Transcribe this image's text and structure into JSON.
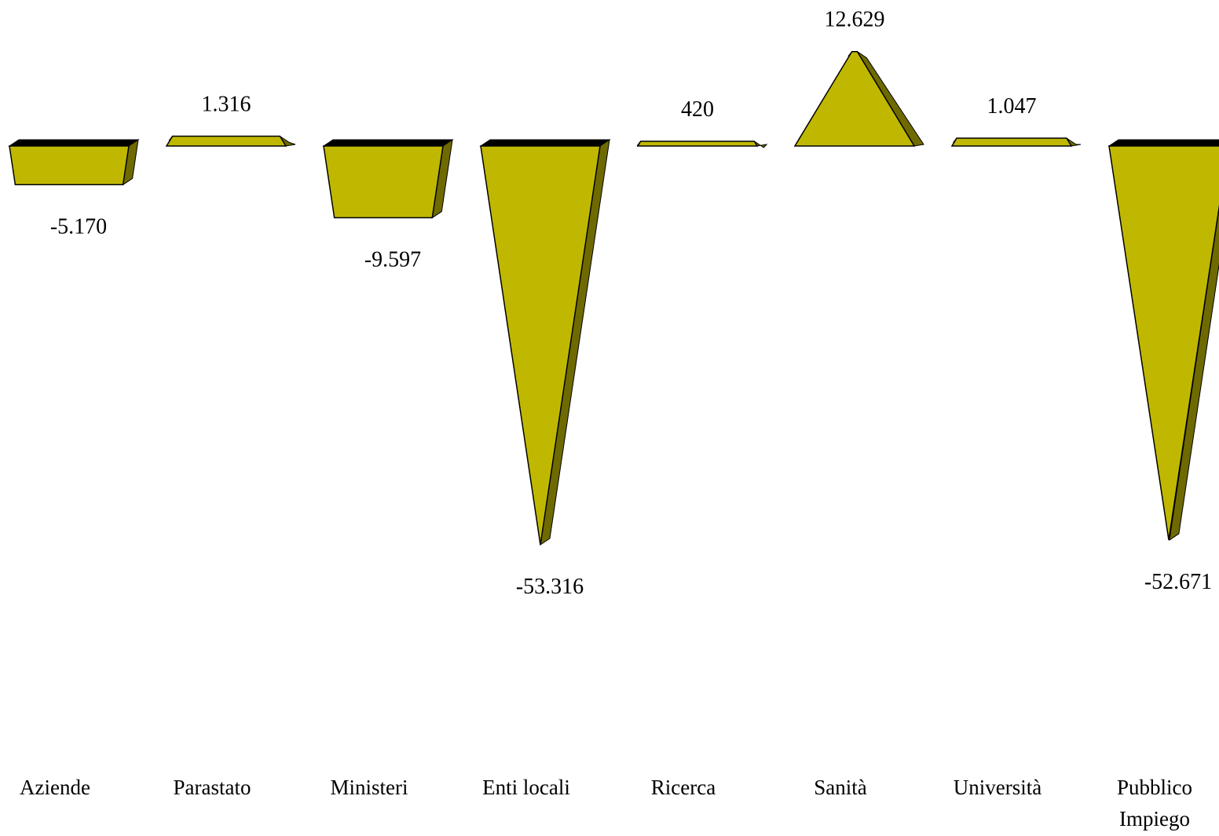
{
  "chart_data": {
    "type": "bar",
    "shape": "pyramid",
    "categories": [
      "Aziende",
      "Parastato",
      "Ministeri",
      "Enti locali",
      "Ricerca",
      "Sanità",
      "Università",
      "Pubblico Impiego"
    ],
    "category_lines": [
      [
        "Aziende"
      ],
      [
        "Parastato"
      ],
      [
        "Ministeri"
      ],
      [
        "Enti locali"
      ],
      [
        "Ricerca"
      ],
      [
        "Sanità"
      ],
      [
        "Università"
      ],
      [
        "Pubblico",
        "Impiego"
      ]
    ],
    "values": [
      -5170,
      1316,
      -9597,
      -53316,
      420,
      12629,
      1047,
      -52671
    ],
    "value_labels": [
      "-5.170",
      "1.316",
      "-9.597",
      "-53.316",
      "420",
      "12.629",
      "1.047",
      "-52.671"
    ],
    "title": "",
    "xlabel": "",
    "ylabel": "",
    "ylim": [
      -53316,
      12629
    ],
    "grid": false,
    "legend": "none",
    "colors": {
      "face": "#C0B800",
      "side": "#6E6A00",
      "top": "#000000",
      "outline": "#000000"
    }
  }
}
